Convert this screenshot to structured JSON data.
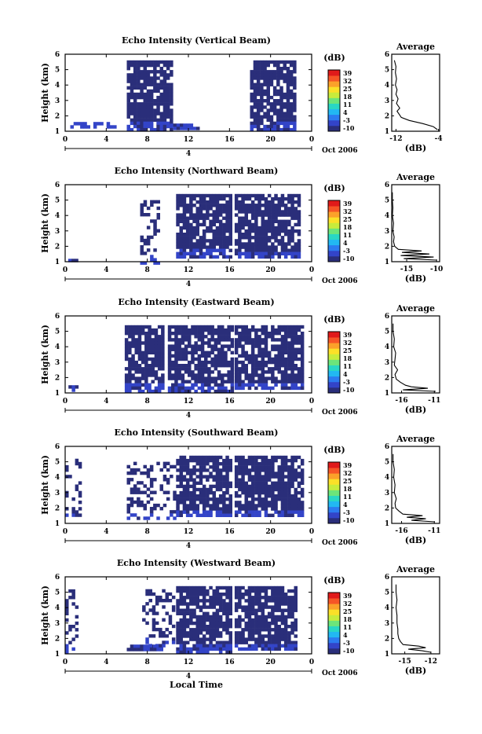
{
  "chart_data": [
    {
      "type": "heatmap",
      "title": "Echo Intensity (Vertical Beam)",
      "ylabel": "Height (km)",
      "xlabel": "",
      "xlim": [
        0,
        24
      ],
      "ylim": [
        1,
        6
      ],
      "xticks": [
        "0",
        "4",
        "8",
        "12",
        "16",
        "20",
        "0"
      ],
      "yticks": [
        "1",
        "2",
        "3",
        "4",
        "5",
        "6"
      ],
      "date_marker": "4",
      "date_label": "Oct 2006",
      "colorbar": {
        "unit": "(dB)",
        "ticks": [
          "39",
          "32",
          "25",
          "18",
          "11",
          "4",
          "-3",
          "-10"
        ]
      },
      "echo_regions": [
        {
          "t": [
            6.0,
            10.2
          ],
          "h": [
            1.2,
            5.6
          ],
          "level": "strong"
        },
        {
          "t": [
            10.2,
            13.0
          ],
          "h": [
            1.2,
            1.5
          ],
          "level": "strong"
        },
        {
          "t": [
            0.5,
            5.0
          ],
          "h": [
            1.2,
            1.6
          ],
          "level": "medium"
        },
        {
          "t": [
            18.0,
            22.2
          ],
          "h": [
            1.2,
            5.6
          ],
          "level": "strong"
        }
      ],
      "profile": {
        "title": "Average",
        "xlabel": "(dB)",
        "xticks": [
          "-12",
          "-4"
        ],
        "xlim": [
          -12.8,
          -3.8
        ],
        "heights": [
          1.1,
          1.3,
          1.5,
          1.7,
          1.9,
          2.1,
          2.3,
          2.5,
          2.8,
          3.1,
          3.4,
          3.7,
          4.0,
          4.4,
          4.8,
          5.2,
          5.6
        ],
        "values": [
          -4.2,
          -5.0,
          -7.0,
          -9.5,
          -11.0,
          -11.4,
          -11.8,
          -11.3,
          -11.9,
          -11.6,
          -12.0,
          -11.8,
          -12.1,
          -11.9,
          -12.1,
          -12.0,
          -12.3
        ]
      }
    },
    {
      "type": "heatmap",
      "title": "Echo Intensity (Northward Beam)",
      "ylabel": "Height (km)",
      "xlabel": "",
      "xlim": [
        0,
        24
      ],
      "ylim": [
        1,
        6
      ],
      "xticks": [
        "0",
        "4",
        "8",
        "12",
        "16",
        "20",
        "0"
      ],
      "yticks": [
        "1",
        "2",
        "3",
        "4",
        "5",
        "6"
      ],
      "date_marker": "4",
      "date_label": "Oct 2006",
      "colorbar": {
        "unit": "(dB)",
        "ticks": [
          "39",
          "32",
          "25",
          "18",
          "11",
          "4",
          "-3",
          "-10"
        ]
      },
      "echo_regions": [
        {
          "t": [
            7.3,
            9.2
          ],
          "h": [
            1.0,
            5.0
          ],
          "level": "sparse"
        },
        {
          "t": [
            10.8,
            16.2
          ],
          "h": [
            1.4,
            5.4
          ],
          "level": "strong"
        },
        {
          "t": [
            16.5,
            22.8
          ],
          "h": [
            1.3,
            5.4
          ],
          "level": "strong"
        },
        {
          "t": [
            0.3,
            1.5
          ],
          "h": [
            1.0,
            1.4
          ],
          "level": "sparse"
        }
      ],
      "profile": {
        "title": "Average",
        "xlabel": "(dB)",
        "xticks": [
          "-15",
          "-10"
        ],
        "xlim": [
          -17.5,
          -9.5
        ],
        "heights": [
          1.1,
          1.2,
          1.3,
          1.4,
          1.5,
          1.6,
          1.7,
          1.8,
          2.0,
          2.3,
          2.6,
          3.0,
          3.5,
          4.0,
          4.5,
          5.0,
          5.5
        ],
        "values": [
          -10.0,
          -15.5,
          -10.5,
          -16.0,
          -11.2,
          -15.8,
          -12.5,
          -16.4,
          -17.0,
          -17.2,
          -17.1,
          -17.3,
          -17.2,
          -17.4,
          -17.3,
          -17.4,
          -17.4
        ]
      }
    },
    {
      "type": "heatmap",
      "title": "Echo Intensity (Eastward Beam)",
      "ylabel": "Height (km)",
      "xlabel": "",
      "xlim": [
        0,
        24
      ],
      "ylim": [
        1,
        6
      ],
      "xticks": [
        "0",
        "4",
        "8",
        "12",
        "16",
        "20",
        "0"
      ],
      "yticks": [
        "1",
        "2",
        "3",
        "4",
        "5",
        "6"
      ],
      "date_marker": "4",
      "date_label": "Oct 2006",
      "colorbar": {
        "unit": "(dB)",
        "ticks": [
          "39",
          "32",
          "25",
          "18",
          "11",
          "4",
          "-3",
          "-10"
        ]
      },
      "echo_regions": [
        {
          "t": [
            5.8,
            9.4
          ],
          "h": [
            1.2,
            5.4
          ],
          "level": "strong"
        },
        {
          "t": [
            10.0,
            16.2
          ],
          "h": [
            1.2,
            5.4
          ],
          "level": "strong"
        },
        {
          "t": [
            16.5,
            23.0
          ],
          "h": [
            1.3,
            5.4
          ],
          "level": "strong"
        },
        {
          "t": [
            0.0,
            1.2
          ],
          "h": [
            1.1,
            1.5
          ],
          "level": "sparse"
        }
      ],
      "profile": {
        "title": "Average",
        "xlabel": "(dB)",
        "xticks": [
          "-16",
          "-11"
        ],
        "xlim": [
          -17.5,
          -10.2
        ],
        "heights": [
          1.1,
          1.2,
          1.3,
          1.4,
          1.5,
          1.7,
          1.9,
          2.2,
          2.5,
          2.8,
          3.2,
          3.6,
          4.0,
          4.5,
          5.0,
          5.5
        ],
        "values": [
          -10.8,
          -15.8,
          -12.0,
          -14.5,
          -15.4,
          -16.2,
          -16.8,
          -17.0,
          -16.6,
          -17.1,
          -17.0,
          -16.9,
          -17.2,
          -17.1,
          -17.3,
          -17.3
        ]
      }
    },
    {
      "type": "heatmap",
      "title": "Echo Intensity (Southward Beam)",
      "ylabel": "Height (km)",
      "xlabel": "",
      "xlim": [
        0,
        24
      ],
      "ylim": [
        1,
        6
      ],
      "xticks": [
        "0",
        "4",
        "8",
        "12",
        "16",
        "20",
        "0"
      ],
      "yticks": [
        "1",
        "2",
        "3",
        "4",
        "5",
        "6"
      ],
      "date_marker": "4",
      "date_label": "Oct 2006",
      "colorbar": {
        "unit": "(dB)",
        "ticks": [
          "39",
          "32",
          "25",
          "18",
          "11",
          "4",
          "-3",
          "-10"
        ]
      },
      "echo_regions": [
        {
          "t": [
            0.0,
            1.6
          ],
          "h": [
            1.3,
            5.2
          ],
          "level": "sparse"
        },
        {
          "t": [
            6.0,
            10.5
          ],
          "h": [
            1.3,
            5.0
          ],
          "level": "sparse"
        },
        {
          "t": [
            10.8,
            16.2
          ],
          "h": [
            1.5,
            5.4
          ],
          "level": "strong"
        },
        {
          "t": [
            16.5,
            23.0
          ],
          "h": [
            1.5,
            5.4
          ],
          "level": "strong"
        }
      ],
      "profile": {
        "title": "Average",
        "xlabel": "(dB)",
        "xticks": [
          "-16",
          "-11"
        ],
        "xlim": [
          -17.5,
          -10.2
        ],
        "heights": [
          1.1,
          1.2,
          1.3,
          1.4,
          1.5,
          1.6,
          1.8,
          2.0,
          2.3,
          2.6,
          3.0,
          3.5,
          4.0,
          4.5,
          5.0,
          5.5
        ],
        "values": [
          -11.0,
          -14.5,
          -12.3,
          -15.2,
          -12.8,
          -15.8,
          -16.4,
          -16.9,
          -17.0,
          -16.8,
          -17.1,
          -17.0,
          -17.2,
          -17.1,
          -17.3,
          -17.3
        ]
      }
    },
    {
      "type": "heatmap",
      "title": "Echo Intensity (Westward Beam)",
      "ylabel": "Height (km)",
      "xlabel": "Local Time",
      "xlim": [
        0,
        24
      ],
      "ylim": [
        1,
        6
      ],
      "xticks": [
        "0",
        "4",
        "8",
        "12",
        "16",
        "20",
        "0"
      ],
      "yticks": [
        "1",
        "2",
        "3",
        "4",
        "5",
        "6"
      ],
      "date_marker": "4",
      "date_label": "Oct 2006",
      "colorbar": {
        "unit": "(dB)",
        "ticks": [
          "39",
          "32",
          "25",
          "18",
          "11",
          "4",
          "-3",
          "-10"
        ]
      },
      "echo_regions": [
        {
          "t": [
            0.0,
            1.2
          ],
          "h": [
            1.2,
            5.4
          ],
          "level": "sparse"
        },
        {
          "t": [
            6.0,
            9.3
          ],
          "h": [
            1.2,
            1.6
          ],
          "level": "strong"
        },
        {
          "t": [
            7.5,
            10.5
          ],
          "h": [
            1.6,
            5.2
          ],
          "level": "sparse"
        },
        {
          "t": [
            10.8,
            16.2
          ],
          "h": [
            1.2,
            5.4
          ],
          "level": "strong"
        },
        {
          "t": [
            16.5,
            22.5
          ],
          "h": [
            1.3,
            5.4
          ],
          "level": "strong"
        }
      ],
      "profile": {
        "title": "Average",
        "xlabel": "(dB)",
        "xticks": [
          "-15",
          "-12"
        ],
        "xlim": [
          -16.5,
          -11.0
        ],
        "heights": [
          1.1,
          1.2,
          1.3,
          1.4,
          1.5,
          1.6,
          1.8,
          2.0,
          2.3,
          2.6,
          3.0,
          3.5,
          4.0,
          4.5,
          5.0,
          5.5
        ],
        "values": [
          -12.0,
          -13.0,
          -14.6,
          -12.6,
          -13.4,
          -15.2,
          -15.5,
          -15.7,
          -15.8,
          -15.8,
          -15.9,
          -15.9,
          -16.0,
          -15.9,
          -16.0,
          -16.0
        ]
      }
    }
  ]
}
